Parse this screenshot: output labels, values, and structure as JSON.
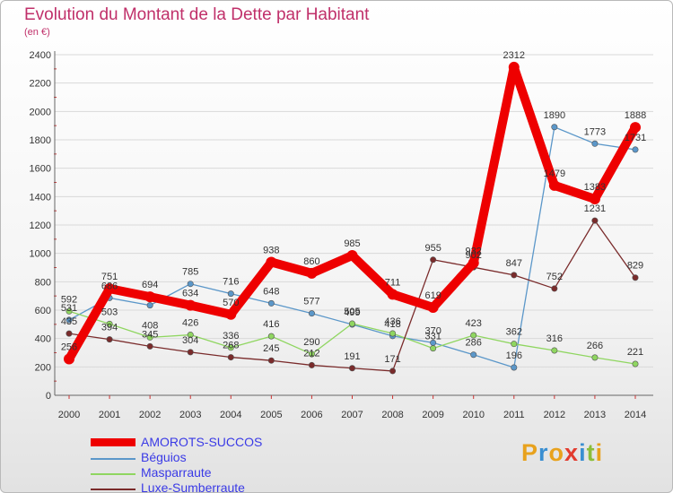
{
  "header": {
    "title": "Evolution du Montant de la Dette par Habitant",
    "subtitle": "(en €)"
  },
  "logo": {
    "letters": [
      "P",
      "r",
      "o",
      "x",
      "i",
      "t",
      "i"
    ],
    "colors": [
      "#e8a21d",
      "#3a8fd1",
      "#e8a21d",
      "#e23b2e",
      "#3a8fd1",
      "#8bbe3a",
      "#e8a21d"
    ]
  },
  "chart_data": {
    "type": "line",
    "title": "Evolution du Montant de la Dette par Habitant",
    "subtitle": "(en €)",
    "xlabel": "",
    "ylabel": "",
    "x": [
      2000,
      2001,
      2002,
      2003,
      2004,
      2005,
      2006,
      2007,
      2008,
      2009,
      2010,
      2011,
      2012,
      2013,
      2014
    ],
    "ylim": [
      0,
      2400
    ],
    "yticks": [
      0,
      200,
      400,
      600,
      800,
      1000,
      1200,
      1400,
      1600,
      1800,
      2000,
      2200,
      2400
    ],
    "grid": "horizontal",
    "legend_position": "bottom-left",
    "series": [
      {
        "name": "Béguios",
        "color": "#5b97c9",
        "values": [
          531,
          686,
          634,
          785,
          716,
          648,
          577,
          499,
          418,
          370,
          286,
          196,
          1890,
          1773,
          1731
        ],
        "labels": [
          "531",
          "686",
          "",
          "785",
          "716",
          "648",
          "577",
          "499",
          "418",
          "370",
          "286",
          "196",
          "1890",
          "1773",
          "1731"
        ]
      },
      {
        "name": "Masparraute",
        "color": "#8fd660",
        "values": [
          592,
          503,
          408,
          426,
          336,
          416,
          290,
          505,
          436,
          331,
          423,
          362,
          316,
          266,
          221
        ],
        "labels": [
          "592",
          "503",
          "408",
          "426",
          "336",
          "416",
          "290",
          "505",
          "436",
          "331",
          "423",
          "362",
          "316",
          "266",
          "221"
        ]
      },
      {
        "name": "Luxe-Sumberraute",
        "color": "#7a2b2b",
        "values": [
          435,
          394,
          345,
          304,
          268,
          245,
          212,
          191,
          171,
          955,
          902,
          847,
          752,
          1231,
          829
        ],
        "labels": [
          "435",
          "394",
          "345",
          "304",
          "268",
          "245",
          "212",
          "191",
          "171",
          "955",
          "902",
          "847",
          "752",
          "1231",
          "829"
        ]
      },
      {
        "name": "AMOROTS-SUCCOS",
        "color": "#ee0000",
        "values": [
          256,
          751,
          694,
          634,
          570,
          938,
          860,
          985,
          711,
          619,
          932,
          2312,
          1479,
          1383,
          1888
        ],
        "labels": [
          "256",
          "751",
          "694",
          "634",
          "570",
          "938",
          "860",
          "985",
          "711",
          "619",
          "932",
          "2312",
          "1479",
          "1383",
          "1888"
        ]
      }
    ],
    "legend_order": [
      "AMOROTS-SUCCOS",
      "Béguios",
      "Masparraute",
      "Luxe-Sumberraute"
    ]
  }
}
